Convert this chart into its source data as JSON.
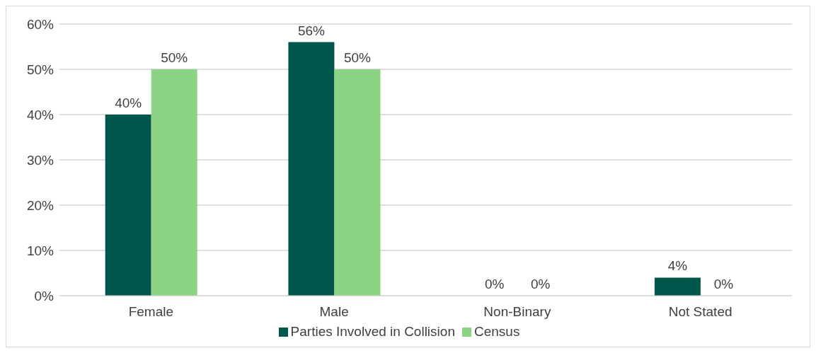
{
  "chart_data": {
    "type": "bar",
    "categories": [
      "Female",
      "Male",
      "Non-Binary",
      "Not Stated"
    ],
    "series": [
      {
        "name": "Parties Involved in Collision",
        "color": "#00574b",
        "values": [
          40,
          56,
          0,
          4
        ],
        "value_labels": [
          "40%",
          "56%",
          "0%",
          "4%"
        ]
      },
      {
        "name": "Census",
        "color": "#8cd483",
        "values": [
          50,
          50,
          0,
          0
        ],
        "value_labels": [
          "50%",
          "50%",
          "0%",
          "0%"
        ]
      }
    ],
    "ylim": [
      0,
      60
    ],
    "yticks": [
      {
        "value": 0,
        "label": "0%"
      },
      {
        "value": 10,
        "label": "10%"
      },
      {
        "value": 20,
        "label": "20%"
      },
      {
        "value": 30,
        "label": "30%"
      },
      {
        "value": 40,
        "label": "40%"
      },
      {
        "value": 50,
        "label": "50%"
      },
      {
        "value": 60,
        "label": "60%"
      }
    ],
    "grid": "y",
    "legend": "bottom"
  }
}
